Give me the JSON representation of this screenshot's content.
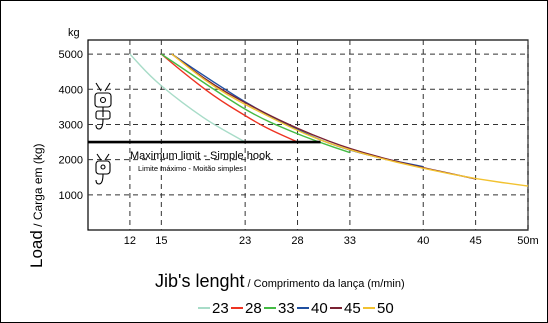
{
  "chart_data": {
    "type": "line",
    "y_unit": "kg",
    "ylabel_main": "Load",
    "ylabel_sub": " / Carga em (kg)",
    "xlabel_main": "Jib's lenght",
    "xlabel_sub": " / Comprimento da lança (m/min)",
    "x_tick_labels": [
      "12",
      "15",
      "23",
      "28",
      "33",
      "40",
      "45",
      "50m"
    ],
    "x_ticks": [
      12,
      15,
      23,
      28,
      33,
      40,
      45,
      50
    ],
    "y_ticks": [
      1000,
      2000,
      3000,
      4000,
      5000
    ],
    "y_tick_labels": [
      "1000",
      "2000",
      "3000",
      "4000",
      "5000"
    ],
    "xlim": [
      8,
      50
    ],
    "ylim": [
      0,
      5400
    ],
    "grid": true,
    "max_limit": {
      "value": 2500,
      "label": "Maximum limit - Simple hook",
      "label_pt": "Limite máximo - Moitão simples"
    },
    "legend_position": "bottom",
    "series": [
      {
        "name": "23",
        "color": "#a8dcc8",
        "x": [
          12,
          14,
          16,
          18,
          20,
          23
        ],
        "y": [
          5000,
          4350,
          3850,
          3400,
          3000,
          2500
        ]
      },
      {
        "name": "28",
        "color": "#ee3322",
        "x": [
          15,
          17,
          20,
          23,
          25,
          28
        ],
        "y": [
          5000,
          4500,
          3800,
          3250,
          2900,
          2500
        ]
      },
      {
        "name": "33",
        "color": "#44bb44",
        "x": [
          15,
          18,
          21,
          24,
          27,
          30,
          33
        ],
        "y": [
          5000,
          4400,
          3800,
          3250,
          2850,
          2500,
          2200
        ]
      },
      {
        "name": "40",
        "color": "#1f4fa0",
        "x": [
          16,
          20,
          24,
          28,
          31,
          35,
          40
        ],
        "y": [
          5000,
          4200,
          3450,
          2850,
          2450,
          2100,
          1800
        ]
      },
      {
        "name": "45",
        "color": "#7a2232",
        "x": [
          16,
          20,
          25,
          29,
          33,
          38,
          45
        ],
        "y": [
          5000,
          4100,
          3300,
          2750,
          2300,
          1900,
          1450
        ]
      },
      {
        "name": "50",
        "color": "#f2c230",
        "x": [
          16,
          20,
          25,
          30,
          35,
          40,
          45,
          50
        ],
        "y": [
          5000,
          4050,
          3250,
          2550,
          2100,
          1750,
          1450,
          1250
        ]
      }
    ]
  }
}
